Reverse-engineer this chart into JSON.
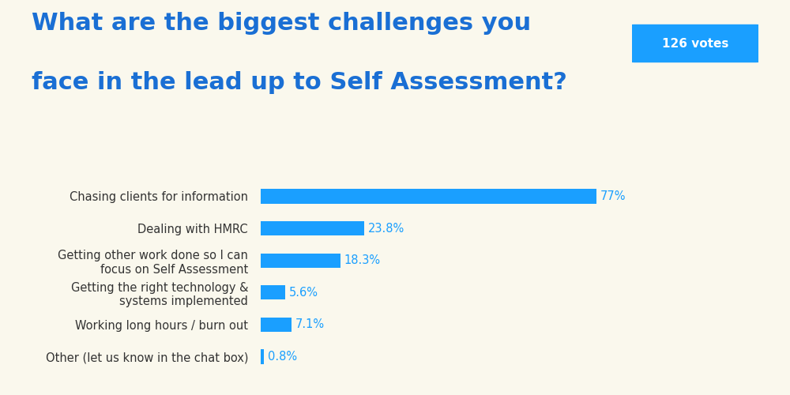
{
  "title_line1": "What are the biggest challenges you",
  "title_line2": "face in the lead up to Self Assessment?",
  "title_color": "#1a6fd4",
  "background_color": "#faf8ed",
  "bar_color": "#1a9fff",
  "votes_label": "126 votes",
  "votes_bg_color": "#1a9fff",
  "votes_text_color": "#ffffff",
  "categories": [
    "Chasing clients for information",
    "Dealing with HMRC",
    "Getting other work done so I can\nfocus on Self Assessment",
    "Getting the right technology &\nsystems implemented",
    "Working long hours / burn out",
    "Other (let us know in the chat box)"
  ],
  "values": [
    77.0,
    23.8,
    18.3,
    5.6,
    7.1,
    0.8
  ],
  "value_labels": [
    "77%",
    "23.8%",
    "18.3%",
    "5.6%",
    "7.1%",
    "0.8%"
  ],
  "xlim": [
    0,
    100
  ],
  "label_fontsize": 10.5,
  "value_fontsize": 10.5,
  "title_fontsize1": 22,
  "title_fontsize2": 22,
  "bar_height": 0.45,
  "text_color": "#333333",
  "value_color": "#1a9fff"
}
